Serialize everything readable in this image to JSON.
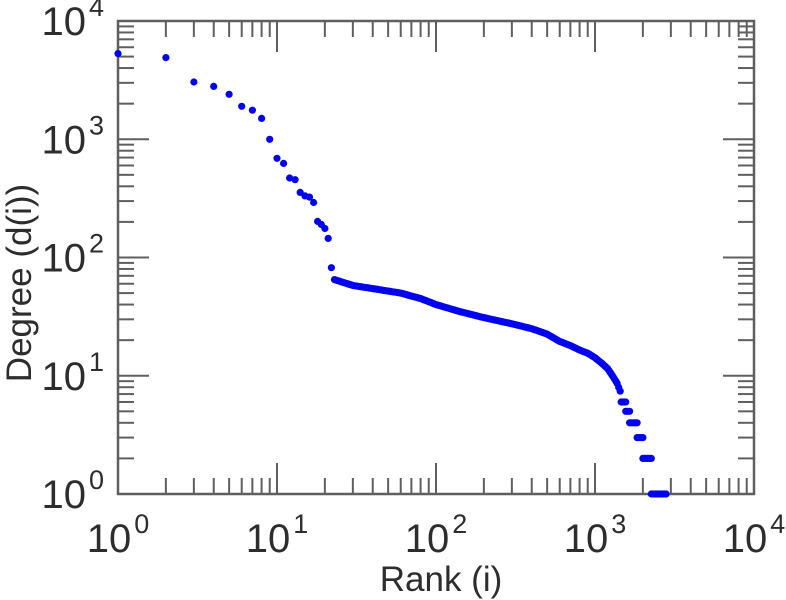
{
  "figure": {
    "background": "#ffffff"
  },
  "chart_data": {
    "type": "scatter",
    "title": "",
    "xlabel": "Rank (i)",
    "ylabel": "Degree (d(i))",
    "xscale": "log",
    "yscale": "log",
    "xlim": [
      1,
      10000
    ],
    "ylim": [
      1,
      10000
    ],
    "x_tick_exponents": [
      0,
      1,
      2,
      3,
      4
    ],
    "y_tick_exponents": [
      0,
      1,
      2,
      3,
      4
    ],
    "tick_base": "10",
    "grid": false,
    "legend": null,
    "frame_color": "#5f5f5f",
    "text_color": "#2d2d2d",
    "marker": {
      "shape": "circle",
      "color": "#0303ef",
      "radius_px": 3.6
    },
    "head_points": [
      [
        1,
        5300
      ],
      [
        2,
        4900
      ],
      [
        3,
        3050
      ],
      [
        4,
        2800
      ],
      [
        5,
        2400
      ],
      [
        6,
        1900
      ],
      [
        7,
        1760
      ],
      [
        8,
        1500
      ],
      [
        9,
        1000
      ],
      [
        10,
        690
      ],
      [
        11,
        625
      ],
      [
        12,
        470
      ],
      [
        13,
        455
      ],
      [
        14,
        355
      ],
      [
        15,
        332
      ],
      [
        16,
        324
      ],
      [
        17,
        292
      ],
      [
        18,
        202
      ],
      [
        19,
        190
      ],
      [
        20,
        176
      ],
      [
        21,
        145
      ],
      [
        22,
        82
      ]
    ],
    "band_anchors": [
      [
        23,
        65
      ],
      [
        30,
        58
      ],
      [
        42,
        54
      ],
      [
        60,
        50
      ],
      [
        80,
        45
      ],
      [
        100,
        40
      ],
      [
        140,
        35
      ],
      [
        200,
        31
      ],
      [
        300,
        27.5
      ],
      [
        400,
        25
      ],
      [
        500,
        22.5
      ],
      [
        600,
        19.5
      ],
      [
        700,
        18
      ],
      [
        800,
        16.5
      ],
      [
        900,
        15.5
      ],
      [
        1000,
        14.2
      ],
      [
        1100,
        12.8
      ],
      [
        1200,
        11.5
      ],
      [
        1300,
        9.8
      ],
      [
        1380,
        8.6
      ],
      [
        1440,
        7.4
      ]
    ],
    "tail_steps": [
      {
        "degree": 6,
        "rank_start": 1460,
        "rank_end": 1560
      },
      {
        "degree": 5,
        "rank_start": 1560,
        "rank_end": 1650
      },
      {
        "degree": 4,
        "rank_start": 1650,
        "rank_end": 1840
      },
      {
        "degree": 3,
        "rank_start": 1840,
        "rank_end": 2000
      },
      {
        "degree": 2,
        "rank_start": 2000,
        "rank_end": 2260
      },
      {
        "degree": 1,
        "rank_start": 2260,
        "rank_end": 2800
      }
    ]
  }
}
